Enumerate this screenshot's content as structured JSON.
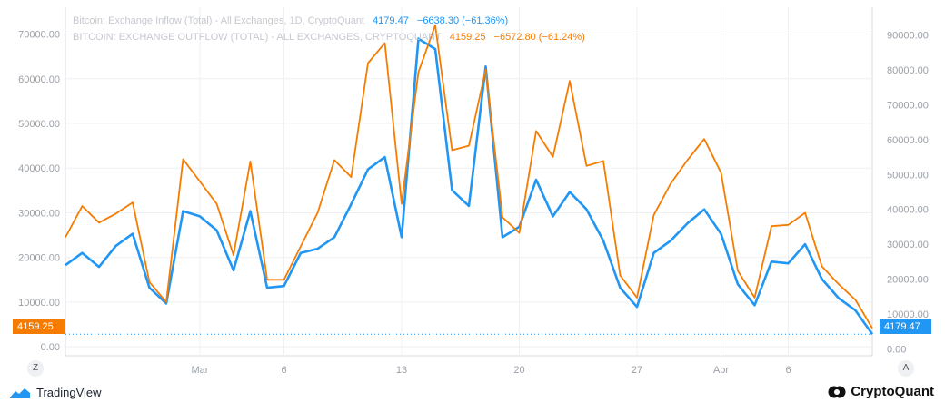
{
  "legend": {
    "inflow_name": "Bitcoin: Exchange Inflow (Total) - All Exchanges, 1D, CryptoQuant",
    "inflow_last": "4179.47",
    "inflow_change": "−6638.30 (−61.36%)",
    "outflow_name": "BITCOIN: EXCHANGE OUTFLOW (TOTAL) - ALL EXCHANGES, CRYPTOQUANT",
    "outflow_last": "4159.25",
    "outflow_change": "−6572.80 (−61.24%)"
  },
  "price_tags": {
    "left": "4159.25",
    "right": "4179.47"
  },
  "scale_buttons": {
    "left": "Z",
    "right": "A"
  },
  "branding": {
    "tradingview": "TradingView",
    "cryptoquant": "CryptoQuant"
  },
  "colors": {
    "inflow": "#2196f3",
    "outflow": "#f57c00",
    "grid": "#eef0f3",
    "axis_text": "#9aa0a8"
  },
  "icons": [
    "tradingview-logo-icon",
    "cryptoquant-logo-icon"
  ],
  "chart_data": {
    "type": "line",
    "x_tick_labels": [
      "Mar",
      "6",
      "13",
      "20",
      "27",
      "Apr",
      "6"
    ],
    "x_tick_index": [
      8,
      13,
      20,
      27,
      34,
      39,
      43
    ],
    "left_axis": {
      "ticks": [
        "0.00",
        "10000.00",
        "20000.00",
        "30000.00",
        "40000.00",
        "50000.00",
        "60000.00",
        "70000.00"
      ],
      "ylim": [
        -2000,
        76000
      ]
    },
    "right_axis": {
      "ticks": [
        "0.00",
        "10000.00",
        "20000.00",
        "30000.00",
        "40000.00",
        "50000.00",
        "60000.00",
        "70000.00",
        "80000.00",
        "90000.00"
      ],
      "ylim": [
        -2000,
        98000
      ]
    },
    "series": [
      {
        "name": "Bitcoin: Exchange Inflow (Total) - All Exchanges, 1D, CryptoQuant",
        "axis": "right",
        "color": "#2196f3",
        "values": [
          24000,
          27500,
          23500,
          29500,
          33000,
          17500,
          13000,
          39500,
          38000,
          34000,
          22500,
          39500,
          17500,
          18000,
          27500,
          28700,
          32000,
          41500,
          51500,
          55000,
          32000,
          89000,
          86000,
          45500,
          41000,
          81000,
          32000,
          35000,
          48500,
          38000,
          45000,
          40000,
          31000,
          17500,
          12000,
          27500,
          31000,
          36000,
          40000,
          33000,
          18500,
          12500,
          25000,
          24500,
          30000,
          20000,
          14500,
          11000,
          4179.47
        ]
      },
      {
        "name": "BITCOIN: EXCHANGE OUTFLOW (TOTAL) - ALL EXCHANGES, CRYPTOQUANT",
        "axis": "left",
        "color": "#f57c00",
        "values": [
          24500,
          31500,
          27800,
          29800,
          32300,
          14500,
          10000,
          42000,
          37000,
          32000,
          20500,
          41500,
          15000,
          15000,
          22500,
          30000,
          41800,
          38000,
          63500,
          68000,
          32000,
          61500,
          72000,
          44000,
          45000,
          62000,
          29000,
          25500,
          48300,
          42500,
          59500,
          40500,
          41600,
          16000,
          11000,
          29500,
          36500,
          41800,
          46500,
          39000,
          17000,
          11000,
          27000,
          27300,
          30000,
          18000,
          14000,
          10500,
          4159.25
        ]
      }
    ]
  }
}
